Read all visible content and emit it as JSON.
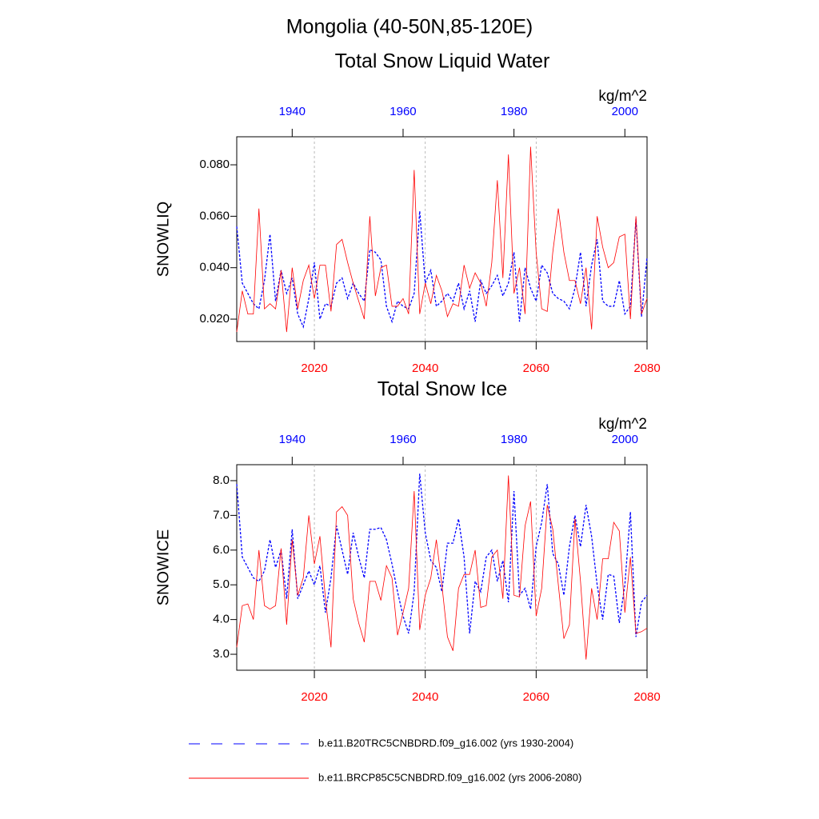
{
  "title": "Mongolia (40-50N,85-120E)",
  "chart_data": [
    {
      "type": "line",
      "title": "Total Snow Liquid Water",
      "units": "kg/m^2",
      "ylabel": "SNOWLIQ",
      "x": [
        2006,
        2007,
        2008,
        2009,
        2010,
        2011,
        2012,
        2013,
        2014,
        2015,
        2016,
        2017,
        2018,
        2019,
        2020,
        2021,
        2022,
        2023,
        2024,
        2025,
        2026,
        2027,
        2028,
        2029,
        2030,
        2031,
        2032,
        2033,
        2034,
        2035,
        2036,
        2037,
        2038,
        2039,
        2040,
        2041,
        2042,
        2043,
        2044,
        2045,
        2046,
        2047,
        2048,
        2049,
        2050,
        2051,
        2052,
        2053,
        2054,
        2055,
        2056,
        2057,
        2058,
        2059,
        2060,
        2061,
        2062,
        2063,
        2064,
        2065,
        2066,
        2067,
        2068,
        2069,
        2070,
        2071,
        2072,
        2073,
        2074,
        2075,
        2076,
        2077,
        2078,
        2079,
        2080
      ],
      "x2": [
        1930,
        1931,
        1932,
        1933,
        1934,
        1935,
        1936,
        1937,
        1938,
        1939,
        1940,
        1941,
        1942,
        1943,
        1944,
        1945,
        1946,
        1947,
        1948,
        1949,
        1950,
        1951,
        1952,
        1953,
        1954,
        1955,
        1956,
        1957,
        1958,
        1959,
        1960,
        1961,
        1962,
        1963,
        1964,
        1965,
        1966,
        1967,
        1968,
        1969,
        1970,
        1971,
        1972,
        1973,
        1974,
        1975,
        1976,
        1977,
        1978,
        1979,
        1980,
        1981,
        1982,
        1983,
        1984,
        1985,
        1986,
        1987,
        1988,
        1989,
        1990,
        1991,
        1992,
        1993,
        1994,
        1995,
        1996,
        1997,
        1998,
        1999,
        2000,
        2001,
        2002,
        2003,
        2004
      ],
      "xlim": [
        2006,
        2080
      ],
      "xticks": [
        2020,
        2040,
        2060,
        2080
      ],
      "x2lim": [
        1930,
        2004
      ],
      "x2ticks": [
        1940,
        1960,
        1980,
        2000
      ],
      "grid": true,
      "ylim": [
        0.0113,
        0.0909
      ],
      "yticks": [
        {
          "value": 0.02,
          "label": "0.020"
        },
        {
          "value": 0.04,
          "label": "0.040"
        },
        {
          "value": 0.06,
          "label": "0.060"
        },
        {
          "value": 0.08,
          "label": "0.080"
        }
      ],
      "series": [
        {
          "name": "b.e11.B20TRC5CNBDRD.f09_g16.002 (yrs 1930-2004)",
          "color": "#0000ff",
          "axis": "x2",
          "dash": true,
          "values": [
            0.056,
            0.034,
            0.03,
            0.026,
            0.024,
            0.035,
            0.053,
            0.027,
            0.039,
            0.03,
            0.036,
            0.022,
            0.017,
            0.028,
            0.042,
            0.02,
            0.026,
            0.025,
            0.034,
            0.036,
            0.028,
            0.034,
            0.03,
            0.027,
            0.047,
            0.046,
            0.043,
            0.025,
            0.019,
            0.027,
            0.025,
            0.024,
            0.03,
            0.062,
            0.034,
            0.039,
            0.025,
            0.027,
            0.03,
            0.027,
            0.034,
            0.024,
            0.031,
            0.019,
            0.035,
            0.03,
            0.033,
            0.037,
            0.029,
            0.034,
            0.046,
            0.019,
            0.04,
            0.032,
            0.027,
            0.041,
            0.038,
            0.03,
            0.028,
            0.027,
            0.024,
            0.032,
            0.046,
            0.025,
            0.041,
            0.051,
            0.027,
            0.025,
            0.025,
            0.035,
            0.022,
            0.025,
            0.059,
            0.021,
            0.044
          ]
        },
        {
          "name": "b.e11.BRCP85C5CNBDRD.f09_g16.002 (yrs 2006-2080)",
          "color": "#ff0000",
          "axis": "x",
          "dash": false,
          "values": [
            0.015,
            0.031,
            0.022,
            0.022,
            0.063,
            0.024,
            0.026,
            0.024,
            0.039,
            0.015,
            0.04,
            0.024,
            0.035,
            0.041,
            0.028,
            0.041,
            0.041,
            0.023,
            0.049,
            0.051,
            0.042,
            0.034,
            0.027,
            0.02,
            0.06,
            0.029,
            0.04,
            0.041,
            0.025,
            0.025,
            0.028,
            0.022,
            0.078,
            0.022,
            0.034,
            0.026,
            0.037,
            0.031,
            0.021,
            0.026,
            0.025,
            0.041,
            0.032,
            0.038,
            0.034,
            0.025,
            0.042,
            0.074,
            0.036,
            0.084,
            0.03,
            0.04,
            0.022,
            0.087,
            0.046,
            0.024,
            0.023,
            0.046,
            0.063,
            0.046,
            0.035,
            0.035,
            0.026,
            0.04,
            0.016,
            0.06,
            0.048,
            0.04,
            0.042,
            0.052,
            0.053,
            0.02,
            0.06,
            0.022,
            0.028
          ]
        }
      ]
    },
    {
      "type": "line",
      "title": "Total Snow Ice",
      "units": "kg/m^2",
      "ylabel": "SNOWICE",
      "x": [
        2006,
        2007,
        2008,
        2009,
        2010,
        2011,
        2012,
        2013,
        2014,
        2015,
        2016,
        2017,
        2018,
        2019,
        2020,
        2021,
        2022,
        2023,
        2024,
        2025,
        2026,
        2027,
        2028,
        2029,
        2030,
        2031,
        2032,
        2033,
        2034,
        2035,
        2036,
        2037,
        2038,
        2039,
        2040,
        2041,
        2042,
        2043,
        2044,
        2045,
        2046,
        2047,
        2048,
        2049,
        2050,
        2051,
        2052,
        2053,
        2054,
        2055,
        2056,
        2057,
        2058,
        2059,
        2060,
        2061,
        2062,
        2063,
        2064,
        2065,
        2066,
        2067,
        2068,
        2069,
        2070,
        2071,
        2072,
        2073,
        2074,
        2075,
        2076,
        2077,
        2078,
        2079,
        2080
      ],
      "x2": [
        1930,
        1931,
        1932,
        1933,
        1934,
        1935,
        1936,
        1937,
        1938,
        1939,
        1940,
        1941,
        1942,
        1943,
        1944,
        1945,
        1946,
        1947,
        1948,
        1949,
        1950,
        1951,
        1952,
        1953,
        1954,
        1955,
        1956,
        1957,
        1958,
        1959,
        1960,
        1961,
        1962,
        1963,
        1964,
        1965,
        1966,
        1967,
        1968,
        1969,
        1970,
        1971,
        1972,
        1973,
        1974,
        1975,
        1976,
        1977,
        1978,
        1979,
        1980,
        1981,
        1982,
        1983,
        1984,
        1985,
        1986,
        1987,
        1988,
        1989,
        1990,
        1991,
        1992,
        1993,
        1994,
        1995,
        1996,
        1997,
        1998,
        1999,
        2000,
        2001,
        2002,
        2003,
        2004
      ],
      "xlim": [
        2006,
        2080
      ],
      "xticks": [
        2020,
        2040,
        2060,
        2080
      ],
      "x2lim": [
        1930,
        2004
      ],
      "x2ticks": [
        1940,
        1960,
        1980,
        2000
      ],
      "grid": true,
      "ylim": [
        2.54,
        8.46
      ],
      "yticks": [
        {
          "value": 3,
          "label": "3.0"
        },
        {
          "value": 4,
          "label": "4.0"
        },
        {
          "value": 5,
          "label": "5.0"
        },
        {
          "value": 6,
          "label": "6.0"
        },
        {
          "value": 7,
          "label": "7.0"
        },
        {
          "value": 8,
          "label": "8.0"
        }
      ],
      "series": [
        {
          "color": "#0000ff",
          "axis": "x2",
          "dash": true,
          "values": [
            7.9,
            5.8,
            5.5,
            5.2,
            5.1,
            5.4,
            6.3,
            5.5,
            6.0,
            4.6,
            6.6,
            4.6,
            5.0,
            5.4,
            5.0,
            5.55,
            4.2,
            5.2,
            6.7,
            6.0,
            5.3,
            6.5,
            5.8,
            5.2,
            6.6,
            6.6,
            6.65,
            6.3,
            5.6,
            4.8,
            4.1,
            3.6,
            4.8,
            8.2,
            6.5,
            5.7,
            5.5,
            4.8,
            6.2,
            6.2,
            6.9,
            5.8,
            3.6,
            5.1,
            4.8,
            5.8,
            6.0,
            5.1,
            5.7,
            4.5,
            7.7,
            4.7,
            4.9,
            4.3,
            6.1,
            6.8,
            7.9,
            5.9,
            5.6,
            4.7,
            6.1,
            7.0,
            6.1,
            7.3,
            6.4,
            5.0,
            4.0,
            5.3,
            5.25,
            3.9,
            5.0,
            7.1,
            3.5,
            4.5,
            4.7
          ]
        },
        {
          "color": "#ff0000",
          "axis": "x",
          "dash": false,
          "values": [
            3.2,
            4.4,
            4.45,
            4.0,
            6.0,
            4.4,
            4.3,
            4.4,
            6.05,
            3.85,
            6.3,
            4.7,
            5.2,
            7.0,
            5.6,
            6.4,
            4.6,
            3.2,
            7.1,
            7.25,
            7.0,
            4.6,
            3.9,
            3.35,
            5.1,
            5.1,
            4.55,
            5.55,
            5.2,
            3.55,
            4.2,
            4.9,
            7.7,
            3.7,
            4.7,
            5.2,
            6.3,
            5.0,
            3.5,
            3.1,
            4.9,
            5.3,
            5.3,
            6.0,
            4.35,
            4.4,
            5.8,
            6.0,
            4.6,
            8.15,
            4.7,
            4.65,
            6.7,
            7.4,
            4.1,
            4.9,
            7.3,
            6.6,
            5.0,
            3.45,
            3.85,
            6.9,
            5.1,
            2.85,
            4.9,
            4.0,
            5.75,
            5.75,
            6.8,
            6.55,
            4.2,
            5.8,
            3.6,
            3.65,
            3.75
          ]
        }
      ]
    }
  ]
}
